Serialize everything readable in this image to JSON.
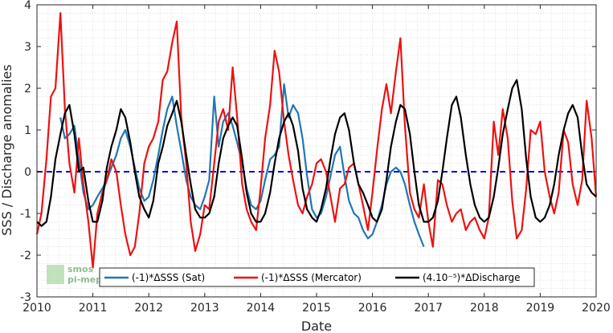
{
  "chart_data": {
    "type": "line",
    "title": "",
    "xlabel": "Date",
    "ylabel": "SSS / Discharge anomalies",
    "xlim": [
      2010,
      2020
    ],
    "ylim": [
      -3,
      4
    ],
    "x_ticks": [
      "2010",
      "2011",
      "2012",
      "2013",
      "2014",
      "2015",
      "2016",
      "2017",
      "2018",
      "2019",
      "2020"
    ],
    "y_ticks": [
      "-3",
      "-2",
      "-1",
      "0",
      "1",
      "2",
      "3",
      "4"
    ],
    "grid": "minor dotted",
    "legend_position": "bottom",
    "reference_line": {
      "y": 0,
      "style": "dashed",
      "color": "#0000dd"
    },
    "series": [
      {
        "name": "(-1)*ΔSSS (Sat)",
        "color": "#1f77b4",
        "x": [
          2010.42,
          2010.5,
          2010.58,
          2010.67,
          2010.75,
          2010.83,
          2010.92,
          2011.0,
          2011.08,
          2011.17,
          2011.25,
          2011.33,
          2011.42,
          2011.5,
          2011.58,
          2011.67,
          2011.75,
          2011.83,
          2011.92,
          2012.0,
          2012.08,
          2012.17,
          2012.25,
          2012.33,
          2012.42,
          2012.5,
          2012.58,
          2012.67,
          2012.75,
          2012.83,
          2012.92,
          2013.0,
          2013.08,
          2013.17,
          2013.25,
          2013.33,
          2013.42,
          2013.5,
          2013.58,
          2013.67,
          2013.75,
          2013.83,
          2013.92,
          2014.0,
          2014.08,
          2014.17,
          2014.25,
          2014.33,
          2014.42,
          2014.5,
          2014.58,
          2014.67,
          2014.75,
          2014.83,
          2014.92,
          2015.0,
          2015.08,
          2015.17,
          2015.25,
          2015.33,
          2015.42,
          2015.5,
          2015.58,
          2015.67,
          2015.75,
          2015.83,
          2015.92,
          2016.0,
          2016.08,
          2016.17,
          2016.25,
          2016.33,
          2016.42,
          2016.5,
          2016.58,
          2016.67,
          2016.75,
          2016.83,
          2016.92
        ],
        "y": [
          1.3,
          0.8,
          0.9,
          1.1,
          0.3,
          -0.5,
          -0.9,
          -0.8,
          -0.6,
          -0.4,
          -0.2,
          0.1,
          0.4,
          0.8,
          1.0,
          0.6,
          0.1,
          -0.4,
          -0.7,
          -0.6,
          -0.2,
          0.4,
          1.0,
          1.5,
          1.8,
          1.1,
          0.5,
          -0.2,
          -0.6,
          -0.8,
          -0.9,
          -0.6,
          -0.2,
          1.8,
          0.6,
          1.2,
          1.4,
          1.1,
          0.7,
          0.2,
          -0.4,
          -0.8,
          -0.9,
          -0.7,
          -0.2,
          0.3,
          0.4,
          0.6,
          2.1,
          1.3,
          1.6,
          1.4,
          0.8,
          -0.1,
          -0.9,
          -1.1,
          -1.0,
          -0.6,
          -0.1,
          0.4,
          0.6,
          -0.1,
          -0.7,
          -1.0,
          -1.1,
          -1.4,
          -1.6,
          -1.5,
          -1.2,
          -0.8,
          -0.3,
          0.0,
          0.1,
          0.0,
          -0.3,
          -0.8,
          -1.2,
          -1.5,
          -1.8
        ]
      },
      {
        "name": "(-1)*ΔSSS (Mercator)",
        "color": "#ee1111",
        "x": [
          2010.0,
          2010.08,
          2010.17,
          2010.25,
          2010.33,
          2010.42,
          2010.5,
          2010.58,
          2010.67,
          2010.75,
          2010.83,
          2010.92,
          2011.0,
          2011.08,
          2011.17,
          2011.25,
          2011.33,
          2011.42,
          2011.5,
          2011.58,
          2011.67,
          2011.75,
          2011.83,
          2011.92,
          2012.0,
          2012.08,
          2012.17,
          2012.25,
          2012.33,
          2012.42,
          2012.5,
          2012.58,
          2012.67,
          2012.75,
          2012.83,
          2012.92,
          2013.0,
          2013.08,
          2013.17,
          2013.25,
          2013.33,
          2013.42,
          2013.5,
          2013.58,
          2013.67,
          2013.75,
          2013.83,
          2013.92,
          2014.0,
          2014.08,
          2014.17,
          2014.25,
          2014.33,
          2014.42,
          2014.5,
          2014.58,
          2014.67,
          2014.75,
          2014.83,
          2014.92,
          2015.0,
          2015.08,
          2015.17,
          2015.25,
          2015.33,
          2015.42,
          2015.5,
          2015.58,
          2015.67,
          2015.75,
          2015.83,
          2015.92,
          2016.0,
          2016.08,
          2016.17,
          2016.25,
          2016.33,
          2016.42,
          2016.5,
          2016.58,
          2016.67,
          2016.75,
          2016.83,
          2016.92,
          2017.0,
          2017.08,
          2017.17,
          2017.25,
          2017.33,
          2017.42,
          2017.5,
          2017.58,
          2017.67,
          2017.75,
          2017.83,
          2017.92,
          2018.0,
          2018.08,
          2018.17,
          2018.25,
          2018.33,
          2018.42,
          2018.5,
          2018.58,
          2018.67,
          2018.75,
          2018.83,
          2018.92,
          2019.0,
          2019.08,
          2019.17,
          2019.25,
          2019.33,
          2019.42,
          2019.5,
          2019.58,
          2019.67,
          2019.75,
          2019.83,
          2019.92,
          2020.0
        ],
        "y": [
          -1.5,
          -1.0,
          0.3,
          1.8,
          2.0,
          3.8,
          1.5,
          0.2,
          -0.5,
          0.8,
          -0.3,
          -1.2,
          -2.3,
          -1.0,
          -0.5,
          -0.2,
          0.3,
          0.0,
          -0.8,
          -1.5,
          -2.0,
          -1.8,
          -1.0,
          0.2,
          0.6,
          0.8,
          1.2,
          2.2,
          2.4,
          3.1,
          3.6,
          1.3,
          0.2,
          -1.2,
          -1.9,
          -1.5,
          -0.8,
          -0.9,
          0.2,
          1.2,
          1.5,
          1.0,
          2.5,
          1.3,
          -0.3,
          -0.9,
          -1.2,
          -1.4,
          -0.4,
          0.8,
          1.6,
          2.9,
          2.4,
          1.2,
          0.4,
          -0.2,
          -0.8,
          -1.0,
          -0.6,
          -0.3,
          0.2,
          0.3,
          0.0,
          -0.6,
          -1.2,
          -0.4,
          -0.3,
          0.1,
          0.2,
          -0.3,
          -0.8,
          -1.4,
          -0.5,
          0.5,
          1.5,
          2.1,
          1.4,
          2.4,
          3.2,
          1.1,
          -0.5,
          -0.9,
          -1.1,
          -0.3,
          -1.2,
          -1.8,
          -0.2,
          -0.3,
          -0.8,
          -1.2,
          -1.0,
          -0.9,
          -1.4,
          -1.2,
          -1.1,
          -1.4,
          -1.6,
          -1.1,
          1.2,
          0.4,
          1.5,
          0.8,
          -0.7,
          -1.6,
          -1.4,
          -0.4,
          1.0,
          0.9,
          1.2,
          0.0,
          -0.6,
          -1.0,
          -0.5,
          1.0,
          0.7,
          -0.3,
          -0.8,
          -0.2,
          1.7,
          0.8,
          -0.6
        ]
      },
      {
        "name": "(4.10⁻⁵)*ΔDischarge",
        "color": "#000000",
        "x": [
          2010.0,
          2010.08,
          2010.17,
          2010.25,
          2010.33,
          2010.42,
          2010.5,
          2010.58,
          2010.67,
          2010.75,
          2010.83,
          2010.92,
          2011.0,
          2011.08,
          2011.17,
          2011.25,
          2011.33,
          2011.42,
          2011.5,
          2011.58,
          2011.67,
          2011.75,
          2011.83,
          2011.92,
          2012.0,
          2012.08,
          2012.17,
          2012.25,
          2012.33,
          2012.42,
          2012.5,
          2012.58,
          2012.67,
          2012.75,
          2012.83,
          2012.92,
          2013.0,
          2013.08,
          2013.17,
          2013.25,
          2013.33,
          2013.42,
          2013.5,
          2013.58,
          2013.67,
          2013.75,
          2013.83,
          2013.92,
          2014.0,
          2014.08,
          2014.17,
          2014.25,
          2014.33,
          2014.42,
          2014.5,
          2014.58,
          2014.67,
          2014.75,
          2014.83,
          2014.92,
          2015.0,
          2015.08,
          2015.17,
          2015.25,
          2015.33,
          2015.42,
          2015.5,
          2015.58,
          2015.67,
          2015.75,
          2015.83,
          2015.92,
          2016.0,
          2016.08,
          2016.17,
          2016.25,
          2016.33,
          2016.42,
          2016.5,
          2016.58,
          2016.67,
          2016.75,
          2016.83,
          2016.92,
          2017.0,
          2017.08,
          2017.17,
          2017.25,
          2017.33,
          2017.42,
          2017.5,
          2017.58,
          2017.67,
          2017.75,
          2017.83,
          2017.92,
          2018.0,
          2018.08,
          2018.17,
          2018.25,
          2018.33,
          2018.42,
          2018.5,
          2018.58,
          2018.67,
          2018.75,
          2018.83,
          2018.92,
          2019.0,
          2019.08,
          2019.17,
          2019.25,
          2019.33,
          2019.42,
          2019.5,
          2019.58,
          2019.67,
          2019.75,
          2019.83,
          2019.92,
          2020.0
        ],
        "y": [
          -1.2,
          -1.3,
          -1.2,
          -0.6,
          0.3,
          0.9,
          1.4,
          1.6,
          0.9,
          0.0,
          0.1,
          -0.7,
          -1.2,
          -1.2,
          -0.7,
          0.1,
          0.6,
          1.0,
          1.5,
          1.3,
          0.7,
          0.0,
          -0.6,
          -0.9,
          -1.1,
          -0.7,
          0.2,
          0.6,
          1.1,
          1.4,
          1.7,
          1.2,
          0.4,
          -0.3,
          -0.9,
          -1.1,
          -1.1,
          -1.0,
          -0.6,
          0.2,
          0.8,
          1.1,
          1.3,
          1.1,
          0.3,
          -0.5,
          -1.0,
          -1.2,
          -1.2,
          -1.0,
          -0.5,
          0.2,
          0.8,
          1.2,
          1.4,
          1.1,
          0.5,
          -0.4,
          -0.9,
          -1.1,
          -1.2,
          -0.9,
          -0.4,
          0.3,
          0.9,
          1.3,
          1.4,
          1.0,
          0.2,
          -0.3,
          -0.5,
          -0.8,
          -1.1,
          -1.2,
          -0.9,
          -0.2,
          0.6,
          1.2,
          1.6,
          1.5,
          0.9,
          0.0,
          -0.8,
          -1.2,
          -1.2,
          -1.1,
          -0.7,
          0.0,
          0.8,
          1.6,
          1.8,
          1.3,
          0.4,
          -0.3,
          -0.8,
          -1.1,
          -1.2,
          -1.1,
          -0.6,
          0.1,
          0.9,
          1.5,
          2.0,
          2.2,
          1.5,
          0.3,
          -0.6,
          -1.1,
          -1.2,
          -1.1,
          -0.8,
          -0.3,
          0.4,
          1.0,
          1.4,
          1.6,
          1.3,
          0.4,
          -0.3,
          -0.5,
          -0.6
        ]
      }
    ]
  },
  "logo": {
    "line1": "smos",
    "line2": "pi-mep"
  },
  "colors": {
    "grid": "#d0d0d0",
    "axes": "#262626"
  }
}
